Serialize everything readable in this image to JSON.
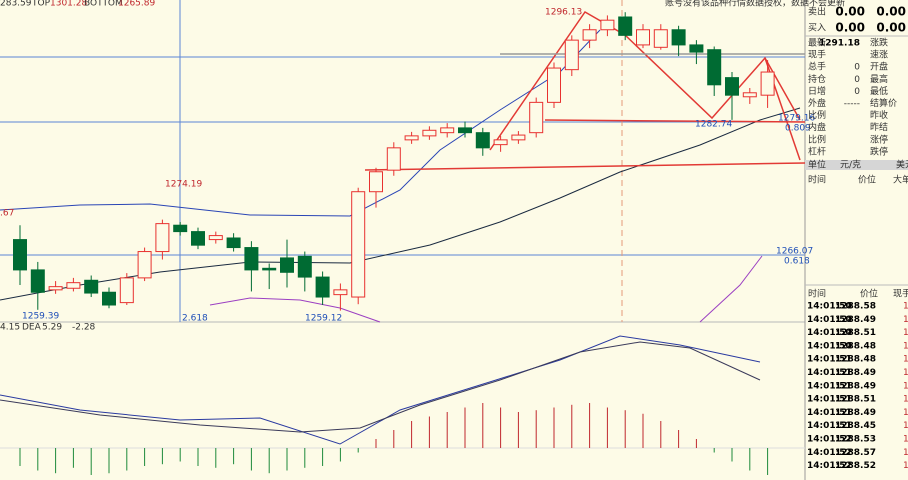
{
  "header": {
    "value": "283.59",
    "top_label": "TOP",
    "top": "1301.28",
    "bottom_label": "BOTTOM",
    "bottom": "1265.89",
    "notice": "账号没有该品种行情数据授权，数据不会更新"
  },
  "chart": {
    "ylim": [
      1257.67,
      1298.03
    ],
    "up_color": "#e8312f",
    "down_color": "#006b33",
    "labels": {
      "high": "1296.13",
      "peak": "1274.19",
      "left": ".67",
      "low1": "1259.39",
      "low2": "1259.12",
      "fib_a": "2.618",
      "mid": "1282.74",
      "mid2": "1279.16",
      "fib_b": "0.809",
      "level": "1266.07",
      "fib_c": "0.618"
    },
    "candles": {
      "open": [
        1268.0,
        1264.2,
        1261.7,
        1261.9,
        1262.9,
        1261.4,
        1260.1,
        1263.2,
        1266.5,
        1269.8,
        1269.0,
        1268.0,
        1268.2,
        1267.0,
        1264.4,
        1265.7,
        1265.9,
        1263.3,
        1261.1,
        1260.8,
        1274.0,
        1276.7,
        1280.5,
        1281.0,
        1281.4,
        1282.0,
        1281.4,
        1279.9,
        1280.5,
        1281.4,
        1285.2,
        1289.3,
        1293.0,
        1294.3,
        1295.9,
        1292.4,
        1292.1,
        1294.3,
        1292.4,
        1291.8,
        1288.3,
        1285.9,
        1286.1
      ],
      "close": [
        1264.2,
        1261.4,
        1262.1,
        1262.6,
        1261.3,
        1259.8,
        1263.2,
        1266.5,
        1270.0,
        1269.0,
        1267.3,
        1268.5,
        1267.0,
        1264.2,
        1264.2,
        1263.9,
        1263.3,
        1260.8,
        1261.7,
        1274.0,
        1276.5,
        1279.5,
        1281.0,
        1281.7,
        1282.0,
        1281.4,
        1279.5,
        1280.5,
        1281.1,
        1285.2,
        1289.5,
        1293.0,
        1294.3,
        1295.5,
        1293.6,
        1294.3,
        1294.3,
        1292.4,
        1291.5,
        1287.4,
        1286.1,
        1286.4,
        1289.0
      ],
      "high": [
        1269.8,
        1265.2,
        1262.8,
        1263.2,
        1263.5,
        1262.0,
        1263.8,
        1267.0,
        1270.5,
        1270.2,
        1269.5,
        1269.0,
        1268.8,
        1267.8,
        1265.0,
        1268.0,
        1266.5,
        1264.0,
        1262.5,
        1274.5,
        1277.0,
        1280.2,
        1281.5,
        1282.2,
        1282.6,
        1282.8,
        1282.0,
        1281.0,
        1281.6,
        1285.8,
        1290.2,
        1293.6,
        1295.0,
        1296.1,
        1296.5,
        1295.0,
        1295.0,
        1294.8,
        1293.0,
        1292.2,
        1289.0,
        1287.0,
        1290.5
      ],
      "low": [
        1262.3,
        1259.2,
        1261.2,
        1261.5,
        1260.8,
        1259.4,
        1259.8,
        1262.8,
        1265.5,
        1268.5,
        1266.8,
        1267.5,
        1266.5,
        1261.5,
        1261.8,
        1262.0,
        1261.5,
        1259.8,
        1259.1,
        1259.9,
        1272.0,
        1276.0,
        1280.0,
        1280.5,
        1280.8,
        1280.8,
        1278.5,
        1279.0,
        1280.0,
        1280.8,
        1284.5,
        1288.5,
        1292.0,
        1293.5,
        1293.0,
        1292.0,
        1291.8,
        1291.0,
        1290.0,
        1286.0,
        1283.0,
        1285.0,
        1284.5
      ]
    }
  },
  "macd": {
    "header": [
      "4.15",
      "DEA",
      "5.29",
      "-2.28"
    ],
    "ylim": [
      -40,
      60
    ],
    "up_color": "#c0272d",
    "down_color": "#1d8a3a",
    "hist": [
      -20,
      -25,
      -28,
      -22,
      -30,
      -28,
      -25,
      -20,
      -18,
      -15,
      -20,
      -22,
      -18,
      -25,
      -28,
      -25,
      -22,
      -20,
      -15,
      -5,
      10,
      20,
      30,
      35,
      40,
      45,
      50,
      45,
      40,
      42,
      45,
      48,
      50,
      45,
      42,
      38,
      30,
      20,
      10,
      -5,
      -15,
      -25,
      -30
    ]
  },
  "quote": {
    "ask": [
      "卖出",
      "0.00",
      "0.00"
    ],
    "bid": [
      "买入",
      "0.00",
      "0.00"
    ],
    "rows": [
      {
        "label": "最新",
        "value": "1291.18",
        "label2": "涨跌"
      },
      {
        "label": "现手",
        "label2": "速涨"
      },
      {
        "label": "总手",
        "value": "0",
        "label2": "开盘"
      },
      {
        "label": "持仓",
        "value": "0",
        "label2": "最高"
      },
      {
        "label": "日增",
        "value": "0",
        "label2": "最低"
      },
      {
        "label": "外盘",
        "value": "-----",
        "label2": "结算价"
      },
      {
        "label": "比例",
        "label2": "昨收"
      },
      {
        "label": "内盘",
        "label2": "昨结"
      },
      {
        "label": "比例",
        "label2": "涨停"
      },
      {
        "label": "杠杆",
        "label2": "跌停"
      }
    ],
    "unit": [
      "单位",
      "元/克",
      "美元"
    ],
    "columns": [
      "时间",
      "价位",
      "大单"
    ]
  },
  "trades": {
    "columns": [
      "时间",
      "价位",
      "现手"
    ],
    "rows": [
      [
        "14:01:50",
        "1288.58",
        "1"
      ],
      [
        "14:01:50",
        "1288.49",
        "1"
      ],
      [
        "14:01:50",
        "1288.51",
        "1"
      ],
      [
        "14:01:50",
        "1288.48",
        "1"
      ],
      [
        "14:01:51",
        "1288.48",
        "1"
      ],
      [
        "14:01:51",
        "1288.49",
        "1"
      ],
      [
        "14:01:51",
        "1288.49",
        "1"
      ],
      [
        "14:01:51",
        "1288.51",
        "1"
      ],
      [
        "14:01:51",
        "1288.49",
        "1"
      ],
      [
        "14:01:51",
        "1288.45",
        "1"
      ],
      [
        "14:01:52",
        "1288.53",
        "1"
      ],
      [
        "14:01:52",
        "1288.57",
        "1"
      ],
      [
        "14:01:52",
        "1288.52",
        "1"
      ]
    ]
  }
}
